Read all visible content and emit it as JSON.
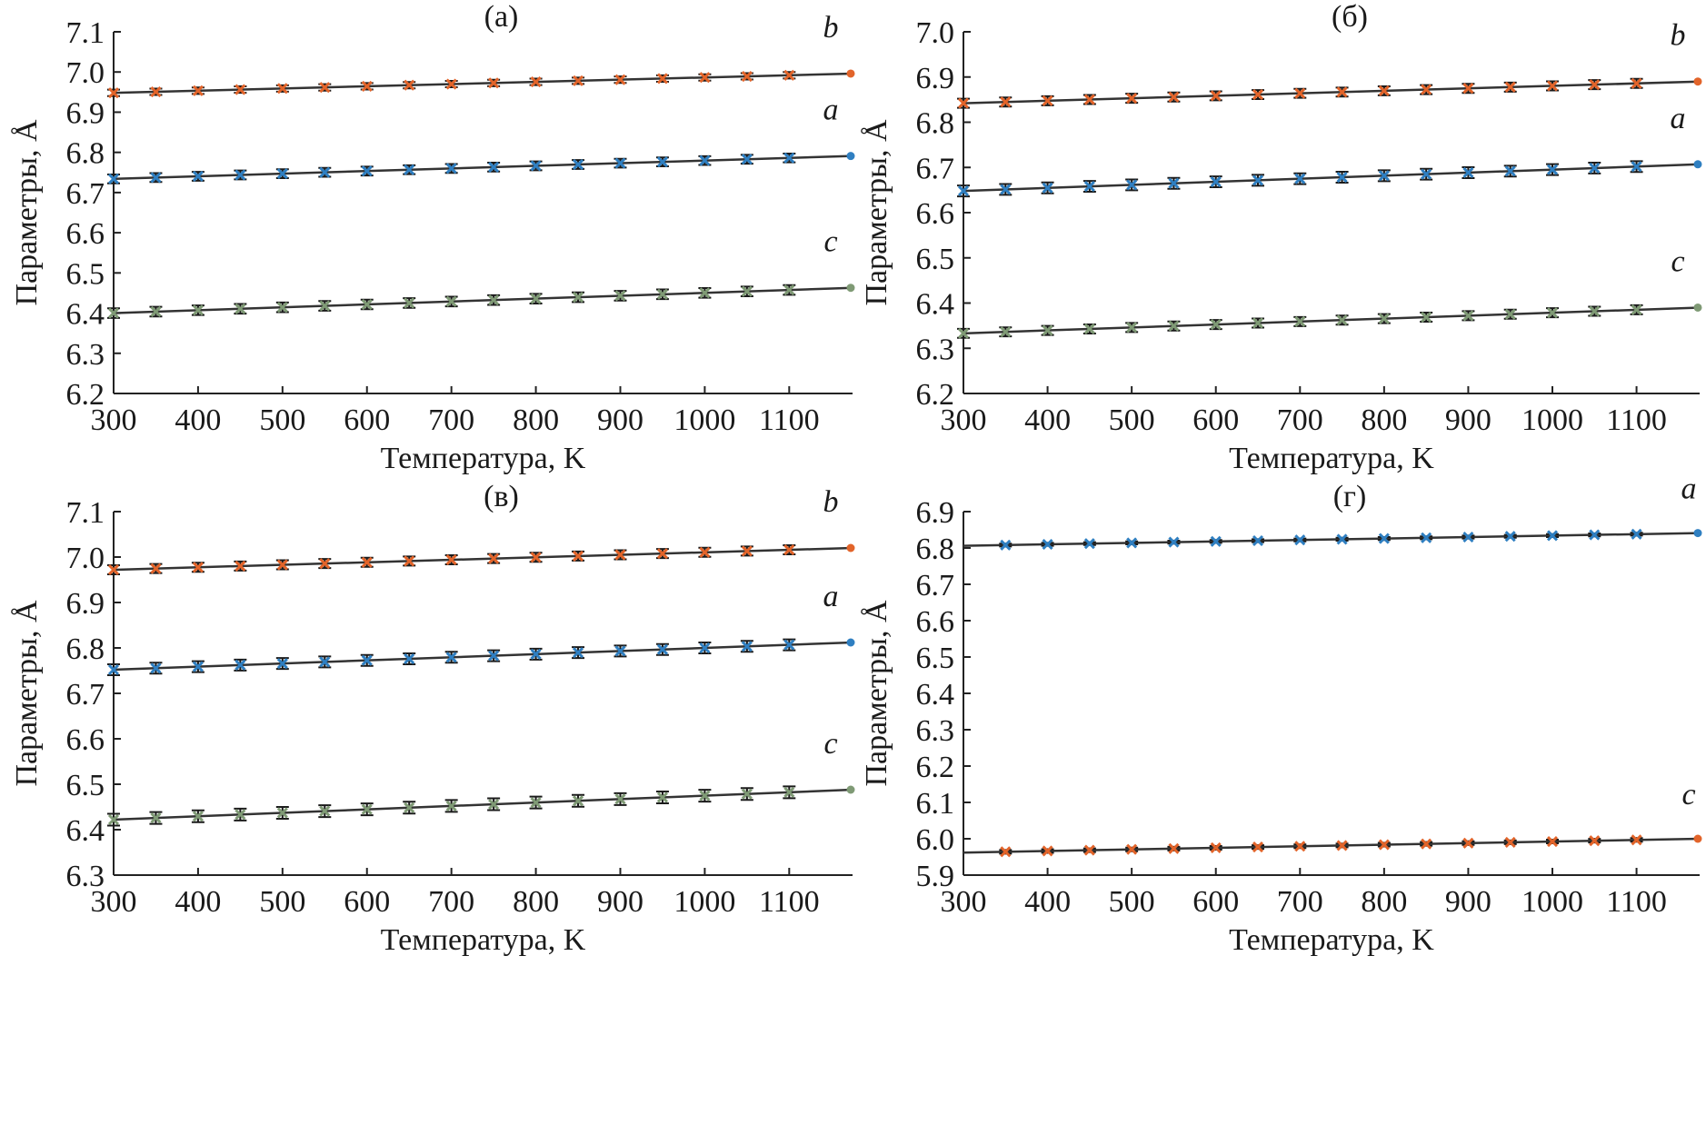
{
  "chart_data": [
    {
      "type": "line",
      "title": "(а)",
      "xlabel": "Температура, K",
      "ylabel": "Параметры, Å",
      "xlim": [
        300,
        1175
      ],
      "ylim": [
        6.2,
        7.1
      ],
      "xticks": [
        300,
        400,
        500,
        600,
        700,
        800,
        900,
        1000,
        1100
      ],
      "yticks": [
        "6.2",
        "6.3",
        "6.4",
        "6.5",
        "6.6",
        "6.7",
        "6.8",
        "6.9",
        "7.0",
        "7.1"
      ],
      "x": [
        300,
        350,
        400,
        450,
        500,
        550,
        600,
        650,
        700,
        750,
        800,
        850,
        900,
        950,
        1000,
        1050,
        1100,
        1175
      ],
      "series": [
        {
          "name": "b",
          "color": "#e2642a",
          "fit": [
            6.948,
            6.996
          ],
          "errorbar": 0.008
        },
        {
          "name": "a",
          "color": "#2f7fc1",
          "fit": [
            6.734,
            6.791
          ],
          "errorbar": 0.011
        },
        {
          "name": "c",
          "color": "#7f9a75",
          "fit": [
            6.4,
            6.463
          ],
          "errorbar": 0.012
        }
      ]
    },
    {
      "type": "line",
      "title": "(б)",
      "xlabel": "Температура, K",
      "ylabel": "Параметры, Å",
      "xlim": [
        300,
        1175
      ],
      "ylim": [
        6.2,
        7.0
      ],
      "xticks": [
        300,
        400,
        500,
        600,
        700,
        800,
        900,
        1000,
        1100
      ],
      "yticks": [
        "6.2",
        "6.3",
        "6.4",
        "6.5",
        "6.6",
        "6.7",
        "6.8",
        "6.9",
        "7.0"
      ],
      "x": [
        300,
        350,
        400,
        450,
        500,
        550,
        600,
        650,
        700,
        750,
        800,
        850,
        900,
        950,
        1000,
        1050,
        1100,
        1175
      ],
      "series": [
        {
          "name": "b",
          "color": "#e2642a",
          "fit": [
            6.842,
            6.89
          ],
          "errorbar": 0.01
        },
        {
          "name": "a",
          "color": "#2f7fc1",
          "fit": [
            6.648,
            6.707
          ],
          "errorbar": 0.012
        },
        {
          "name": "c",
          "color": "#7f9a75",
          "fit": [
            6.333,
            6.39
          ],
          "errorbar": 0.01
        }
      ]
    },
    {
      "type": "line",
      "title": "(в)",
      "xlabel": "Температура, K",
      "ylabel": "Параметры, Å",
      "xlim": [
        300,
        1175
      ],
      "ylim": [
        6.3,
        7.1
      ],
      "xticks": [
        300,
        400,
        500,
        600,
        700,
        800,
        900,
        1000,
        1100
      ],
      "yticks": [
        "6.3",
        "6.4",
        "6.5",
        "6.6",
        "6.7",
        "6.8",
        "6.9",
        "7.0",
        "7.1"
      ],
      "x": [
        300,
        350,
        400,
        450,
        500,
        550,
        600,
        650,
        700,
        750,
        800,
        850,
        900,
        950,
        1000,
        1050,
        1100,
        1175
      ],
      "series": [
        {
          "name": "b",
          "color": "#e2642a",
          "fit": [
            6.972,
            7.02
          ],
          "errorbar": 0.01
        },
        {
          "name": "a",
          "color": "#2f7fc1",
          "fit": [
            6.752,
            6.812
          ],
          "errorbar": 0.012
        },
        {
          "name": "c",
          "color": "#7f9a75",
          "fit": [
            6.422,
            6.488
          ],
          "errorbar": 0.013
        }
      ]
    },
    {
      "type": "line",
      "title": "(г)",
      "xlabel": "Температура, K",
      "ylabel": "Параметры, Å",
      "xlim": [
        300,
        1175
      ],
      "ylim": [
        5.9,
        6.9
      ],
      "xticks": [
        300,
        400,
        500,
        600,
        700,
        800,
        900,
        1000,
        1100
      ],
      "yticks": [
        "5.9",
        "6.0",
        "6.1",
        "6.2",
        "6.3",
        "6.4",
        "6.5",
        "6.6",
        "6.7",
        "6.8",
        "6.9"
      ],
      "x": [
        350,
        400,
        450,
        500,
        550,
        600,
        650,
        700,
        750,
        800,
        850,
        900,
        950,
        1000,
        1050,
        1100,
        1175
      ],
      "series": [
        {
          "name": "a",
          "color": "#2f7fc1",
          "fit": [
            6.806,
            6.841
          ],
          "errorbar": 0.004
        },
        {
          "name": "c",
          "color": "#e2642a",
          "fit": [
            5.962,
            6.0
          ],
          "errorbar": 0.005
        }
      ]
    }
  ]
}
